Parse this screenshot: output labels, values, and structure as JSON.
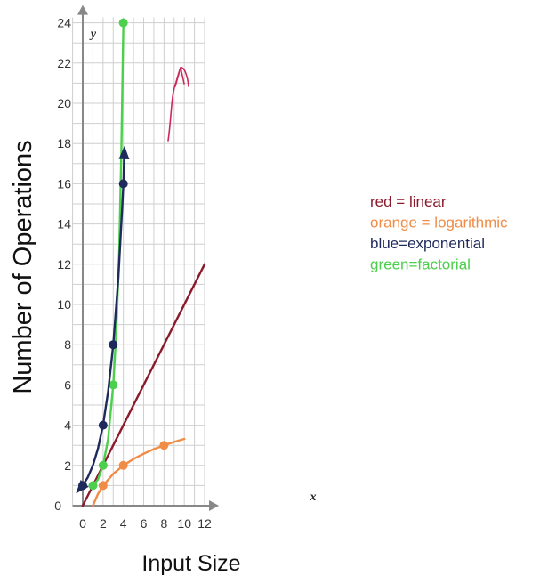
{
  "chart_data": {
    "type": "line",
    "title": "",
    "xlabel": "Input Size",
    "ylabel": "Number of Operations",
    "x_axis_letter": "x",
    "y_axis_letter": "y",
    "xlim": [
      -1,
      12
    ],
    "ylim": [
      0,
      24
    ],
    "x_ticks": [
      "0",
      "2",
      "4",
      "6",
      "8",
      "10",
      "12"
    ],
    "y_ticks": [
      "0",
      "2",
      "4",
      "6",
      "8",
      "10",
      "12",
      "14",
      "16",
      "18",
      "20",
      "22",
      "24"
    ],
    "grid": true,
    "legend_position": "right",
    "legend": [
      {
        "text": "red = linear",
        "color": "#8b1a2b"
      },
      {
        "text": "orange = logarithmic",
        "color": "#f08c46"
      },
      {
        "text": "blue=exponential",
        "color": "#1f2a5c"
      },
      {
        "text": "green=factorial",
        "color": "#4ccf4c"
      }
    ],
    "series": [
      {
        "key": "linear",
        "color": "#8b1a2b",
        "points": [],
        "curve": [
          [
            0,
            0
          ],
          [
            12,
            12
          ]
        ]
      },
      {
        "key": "logarithmic",
        "color": "#f08c46",
        "points": [
          [
            2,
            1
          ],
          [
            4,
            2
          ],
          [
            8,
            3
          ]
        ],
        "curve": [
          [
            1,
            0
          ],
          [
            1.5,
            0.58
          ],
          [
            2,
            1
          ],
          [
            3,
            1.58
          ],
          [
            4,
            2
          ],
          [
            5,
            2.32
          ],
          [
            6,
            2.58
          ],
          [
            7,
            2.81
          ],
          [
            8,
            3
          ],
          [
            9,
            3.17
          ],
          [
            10,
            3.32
          ]
        ]
      },
      {
        "key": "exponential",
        "color": "#1f2a5c",
        "points": [
          [
            0,
            1
          ],
          [
            2,
            4
          ],
          [
            3,
            8
          ],
          [
            4,
            16
          ]
        ],
        "curve": [
          [
            -0.5,
            0.71
          ],
          [
            0,
            1
          ],
          [
            0.5,
            1.41
          ],
          [
            1,
            2
          ],
          [
            1.5,
            2.83
          ],
          [
            2,
            4
          ],
          [
            2.5,
            5.66
          ],
          [
            3,
            8
          ],
          [
            3.5,
            11.31
          ],
          [
            3.9,
            14.93
          ],
          [
            4,
            16
          ],
          [
            4.1,
            17.75
          ]
        ],
        "arrows": [
          [
            -0.5,
            0.71
          ],
          [
            4.1,
            17.75
          ]
        ]
      },
      {
        "key": "factorial",
        "color": "#4ccf4c",
        "points": [
          [
            1,
            1
          ],
          [
            2,
            2
          ],
          [
            3,
            6
          ],
          [
            4,
            24
          ]
        ],
        "curve": [
          [
            1,
            1
          ],
          [
            1.5,
            1.3
          ],
          [
            2,
            2
          ],
          [
            2.5,
            3.3
          ],
          [
            3,
            6
          ],
          [
            3.3,
            8.6
          ],
          [
            3.6,
            12.8
          ],
          [
            3.8,
            17.6
          ],
          [
            4,
            24
          ]
        ]
      }
    ]
  }
}
